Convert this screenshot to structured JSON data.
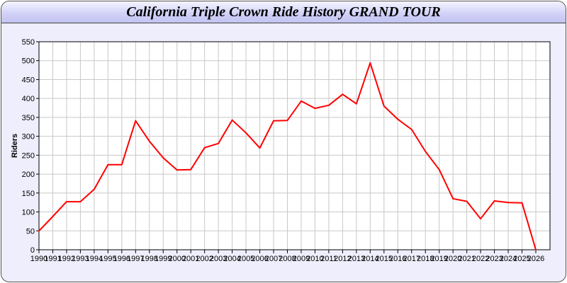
{
  "chart_data": {
    "type": "line",
    "title": "California Triple Crown Ride History GRAND TOUR",
    "xlabel": "",
    "ylabel": "Riders",
    "ylim": [
      0,
      550
    ],
    "yticks": [
      0,
      50,
      100,
      150,
      200,
      250,
      300,
      350,
      400,
      450,
      500,
      550
    ],
    "grid": true,
    "x": [
      1990,
      1991,
      1992,
      1993,
      1994,
      1995,
      1996,
      1997,
      1998,
      1999,
      2000,
      2001,
      2002,
      2003,
      2004,
      2005,
      2006,
      2007,
      2008,
      2009,
      2010,
      2011,
      2012,
      2013,
      2014,
      2015,
      2016,
      2017,
      2018,
      2019,
      2020,
      2021,
      2022,
      2023,
      2024,
      2025,
      2026
    ],
    "series": [
      {
        "color": "#ff0000",
        "values": [
          50,
          88,
          127,
          127,
          160,
          225,
          225,
          341,
          287,
          243,
          211,
          212,
          270,
          281,
          343,
          309,
          269,
          341,
          342,
          393,
          374,
          382,
          411,
          386,
          494,
          380,
          345,
          318,
          260,
          212,
          135,
          128,
          82,
          129,
          125,
          124,
          0
        ]
      }
    ]
  }
}
